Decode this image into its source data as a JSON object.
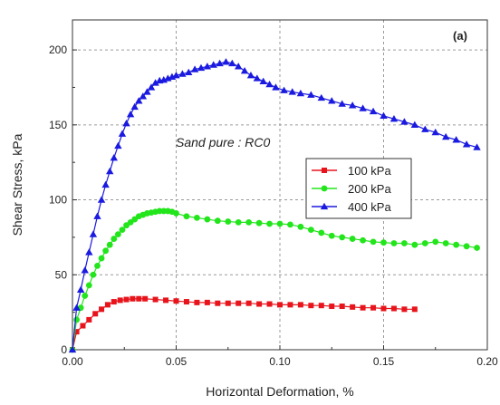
{
  "chart_data": {
    "type": "line",
    "panel_label": "(a)",
    "annotation": "Sand pure : RC0",
    "xlabel": "Horizontal Deformation, %",
    "ylabel": "Shear Stress, kPa",
    "xlim": [
      0,
      0.2
    ],
    "ylim": [
      0,
      220
    ],
    "x_ticks": [
      "0.00",
      "0.05",
      "0.10",
      "0.15",
      "0.20"
    ],
    "y_ticks": [
      "0",
      "50",
      "100",
      "150",
      "200"
    ],
    "grid": true,
    "legend_position": "center-right",
    "series": [
      {
        "name": "100 kPa",
        "color": "#e8141c",
        "marker": "square",
        "x": [
          0.0,
          0.002,
          0.005,
          0.008,
          0.011,
          0.014,
          0.017,
          0.02,
          0.023,
          0.026,
          0.029,
          0.032,
          0.035,
          0.04,
          0.045,
          0.05,
          0.055,
          0.06,
          0.065,
          0.07,
          0.075,
          0.08,
          0.085,
          0.09,
          0.095,
          0.1,
          0.105,
          0.11,
          0.115,
          0.12,
          0.125,
          0.13,
          0.135,
          0.14,
          0.145,
          0.15,
          0.155,
          0.16,
          0.165
        ],
        "y": [
          0,
          12,
          16,
          20,
          24,
          27,
          30,
          32,
          33,
          33.5,
          34,
          34,
          34,
          33.5,
          33,
          32.5,
          32,
          31.5,
          31.5,
          31,
          31,
          31,
          31,
          30.5,
          30.5,
          30,
          30,
          30,
          29.5,
          29.5,
          29,
          29,
          28.5,
          28,
          28,
          27.5,
          27.5,
          27,
          27
        ]
      },
      {
        "name": "200 kPa",
        "color": "#22e51b",
        "marker": "circle",
        "x": [
          0.0,
          0.002,
          0.004,
          0.006,
          0.008,
          0.01,
          0.012,
          0.014,
          0.016,
          0.018,
          0.02,
          0.022,
          0.024,
          0.026,
          0.028,
          0.03,
          0.032,
          0.034,
          0.036,
          0.038,
          0.04,
          0.042,
          0.044,
          0.046,
          0.048,
          0.05,
          0.055,
          0.06,
          0.065,
          0.07,
          0.075,
          0.08,
          0.085,
          0.09,
          0.095,
          0.1,
          0.105,
          0.11,
          0.115,
          0.12,
          0.125,
          0.13,
          0.135,
          0.14,
          0.145,
          0.15,
          0.155,
          0.16,
          0.165,
          0.17,
          0.175,
          0.18,
          0.185,
          0.19,
          0.195
        ],
        "y": [
          0,
          20,
          28,
          36,
          43,
          50,
          56,
          61,
          66,
          70,
          74,
          77,
          80,
          83,
          85,
          87,
          89,
          90,
          91,
          91.5,
          92,
          92.5,
          92.5,
          92.5,
          92,
          91,
          89,
          88,
          87,
          86,
          85.5,
          85,
          85,
          84.5,
          84,
          84,
          83.5,
          82,
          80,
          78,
          76,
          75,
          74,
          73,
          72,
          71.5,
          71,
          71,
          70,
          71,
          72,
          71,
          70,
          69,
          68
        ]
      },
      {
        "name": "400 kPa",
        "color": "#1a1ae0",
        "marker": "triangle",
        "x": [
          0.0,
          0.002,
          0.004,
          0.006,
          0.008,
          0.01,
          0.012,
          0.014,
          0.016,
          0.018,
          0.02,
          0.022,
          0.024,
          0.026,
          0.028,
          0.03,
          0.032,
          0.034,
          0.036,
          0.038,
          0.04,
          0.042,
          0.044,
          0.046,
          0.048,
          0.05,
          0.053,
          0.056,
          0.059,
          0.062,
          0.065,
          0.068,
          0.071,
          0.074,
          0.077,
          0.08,
          0.083,
          0.086,
          0.089,
          0.092,
          0.095,
          0.098,
          0.102,
          0.106,
          0.11,
          0.115,
          0.12,
          0.125,
          0.13,
          0.135,
          0.14,
          0.145,
          0.15,
          0.155,
          0.16,
          0.165,
          0.17,
          0.175,
          0.18,
          0.185,
          0.19,
          0.195
        ],
        "y": [
          0,
          28,
          40,
          53,
          65,
          77,
          89,
          100,
          110,
          119,
          128,
          136,
          144,
          151,
          157,
          162,
          166,
          169,
          172,
          175,
          178,
          179.5,
          180,
          181,
          182,
          183,
          184,
          185,
          187,
          188,
          189,
          190,
          191,
          192,
          191,
          189,
          186,
          183,
          181,
          179,
          177,
          175,
          173,
          172,
          171,
          170,
          168,
          166,
          164,
          163,
          161,
          159,
          156,
          154,
          152,
          150,
          147,
          145,
          142,
          140,
          137,
          135
        ]
      }
    ]
  }
}
